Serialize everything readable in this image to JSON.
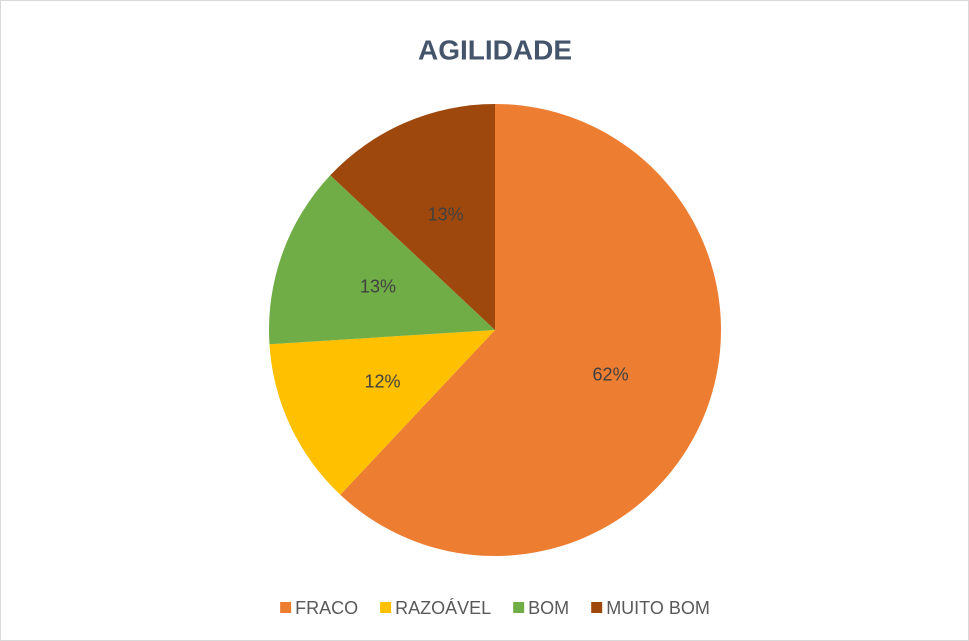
{
  "chart_data": {
    "type": "pie",
    "title": "AGILIDADE",
    "categories": [
      "FRACO",
      "RAZOÁVEL",
      "BOM",
      "MUITO BOM"
    ],
    "values": [
      62,
      12,
      13,
      13
    ],
    "value_labels": [
      "62%",
      "12%",
      "13%",
      "13%"
    ],
    "colors": [
      "#ed7d31",
      "#ffc000",
      "#70ad47",
      "#9e480e"
    ],
    "legend": "bottom"
  }
}
